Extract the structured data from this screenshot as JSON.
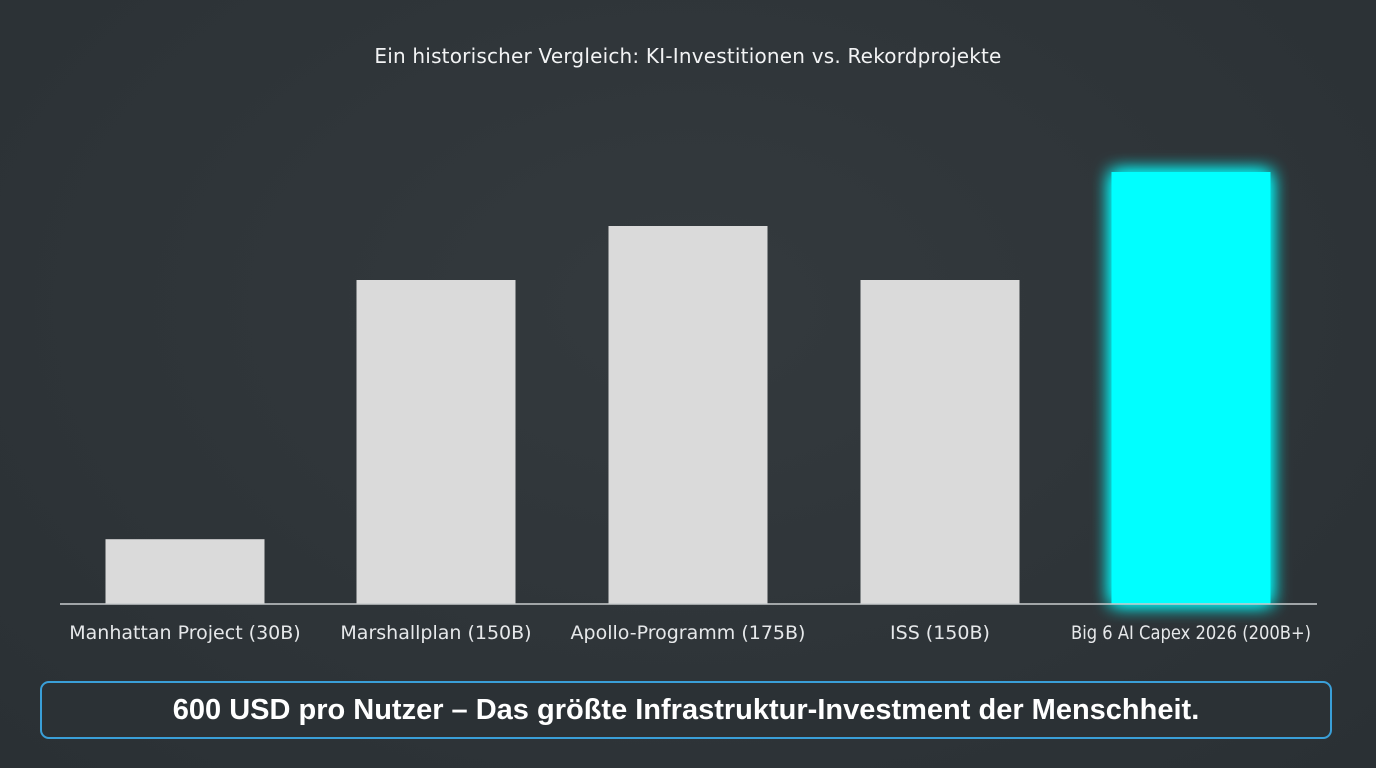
{
  "title": "Ein historischer Vergleich: KI-Investitionen vs. Rekordprojekte",
  "chart_data": {
    "type": "bar",
    "title": "Ein historischer Vergleich: KI-Investitionen vs. Rekordprojekte",
    "categories": [
      "Manhattan Project (30B)",
      "Marshallplan (150B)",
      "Apollo-Programm (175B)",
      "ISS (150B)",
      "Big 6 AI Capex 2026 (200B+)"
    ],
    "values": [
      30,
      150,
      175,
      150,
      200
    ],
    "xlabel": "",
    "ylabel": "",
    "ylim": [
      0,
      200
    ],
    "grid": false,
    "legend": "none",
    "colors": {
      "default_bar": "#dadada",
      "highlight_bar": "#00ffff",
      "axis_line": "#c8cbcd",
      "tick_label": "#e6e8ea"
    },
    "highlight_index": 4
  },
  "footer": {
    "text": "600 USD pro Nutzer – Das größte Infrastruktur-Investment der Menschheit.",
    "border_color": "#3a9fd8"
  }
}
